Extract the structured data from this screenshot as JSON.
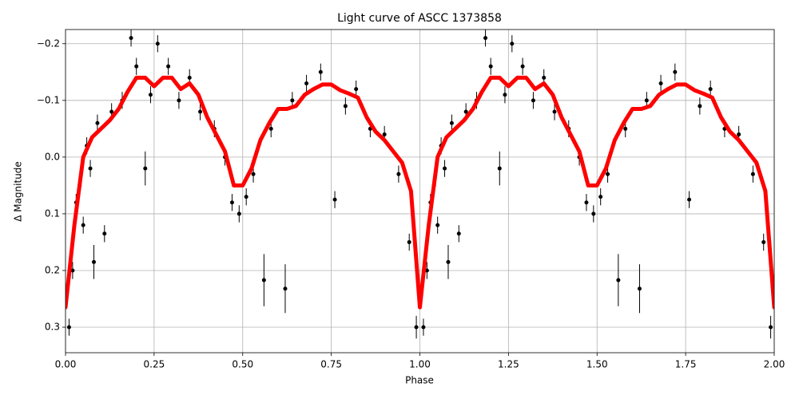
{
  "chart_data": {
    "type": "scatter",
    "title": "Light curve of ASCC 1373858",
    "x_label": "Phase",
    "y_label": "Δ Magnitude",
    "xlim": [
      0,
      2
    ],
    "ylim": [
      -0.225,
      0.345
    ],
    "y_inverted": true,
    "grid": true,
    "xticks": [
      {
        "value": 0,
        "label": "0.00"
      },
      {
        "value": 0.25,
        "label": "0.25"
      },
      {
        "value": 0.5,
        "label": "0.50"
      },
      {
        "value": 0.75,
        "label": "0.75"
      },
      {
        "value": 1,
        "label": "1.00"
      },
      {
        "value": 1.25,
        "label": "1.25"
      },
      {
        "value": 1.5,
        "label": "1.50"
      },
      {
        "value": 1.75,
        "label": "1.75"
      },
      {
        "value": 2,
        "label": "2.00"
      }
    ],
    "yticks": [
      {
        "value": -0.2,
        "label": "−0.2"
      },
      {
        "value": -0.1,
        "label": "−0.1"
      },
      {
        "value": 0,
        "label": "0.0"
      },
      0.1,
      0.2,
      0.3
    ],
    "points": {
      "color": "#000000",
      "x": [
        0.01,
        0.02,
        0.03,
        0.04,
        0.05,
        0.06,
        0.07,
        0.08,
        0.09,
        0.11,
        0.13,
        0.16,
        0.185,
        0.2,
        0.225,
        0.24,
        0.26,
        0.29,
        0.32,
        0.35,
        0.38,
        0.42,
        0.45,
        0.47,
        0.49,
        0.51,
        0.53,
        0.56,
        0.58,
        0.62,
        0.64,
        0.68,
        0.72,
        0.76,
        0.79,
        0.82,
        0.86,
        0.9,
        0.94,
        0.97,
        0.99,
        1.01,
        1.02,
        1.03,
        1.04,
        1.05,
        1.06,
        1.07,
        1.08,
        1.09,
        1.11,
        1.13,
        1.16,
        1.185,
        1.2,
        1.225,
        1.24,
        1.26,
        1.29,
        1.32,
        1.35,
        1.38,
        1.42,
        1.45,
        1.47,
        1.49,
        1.51,
        1.53,
        1.56,
        1.58,
        1.62,
        1.64,
        1.68,
        1.72,
        1.76,
        1.79,
        1.82,
        1.86,
        1.9,
        1.94,
        1.97,
        1.99
      ],
      "values": [
        0.3,
        0.2,
        0.08,
        0.05,
        0.12,
        -0.02,
        0.02,
        0.185,
        -0.06,
        0.135,
        -0.08,
        -0.1,
        -0.21,
        -0.16,
        0.02,
        -0.11,
        -0.2,
        -0.16,
        -0.1,
        -0.14,
        -0.08,
        -0.05,
        0.0,
        0.08,
        0.1,
        0.07,
        0.03,
        0.217,
        -0.05,
        0.232,
        -0.1,
        -0.13,
        -0.15,
        0.075,
        -0.09,
        -0.12,
        -0.05,
        -0.04,
        0.03,
        0.15,
        0.3,
        0.3,
        0.2,
        0.08,
        0.05,
        0.12,
        -0.02,
        0.02,
        0.185,
        -0.06,
        0.135,
        -0.08,
        -0.1,
        -0.21,
        -0.16,
        0.02,
        -0.11,
        -0.2,
        -0.16,
        -0.1,
        -0.14,
        -0.08,
        -0.05,
        0.0,
        0.08,
        0.1,
        0.07,
        0.03,
        0.217,
        -0.05,
        0.232,
        -0.1,
        -0.13,
        -0.15,
        0.075,
        -0.09,
        -0.12,
        -0.05,
        -0.04,
        0.03,
        0.15,
        0.3
      ],
      "errors": [
        0.015,
        0.015,
        0.015,
        0.015,
        0.015,
        0.015,
        0.015,
        0.03,
        0.015,
        0.015,
        0.015,
        0.015,
        0.015,
        0.015,
        0.03,
        0.015,
        0.015,
        0.015,
        0.015,
        0.015,
        0.015,
        0.015,
        0.015,
        0.015,
        0.015,
        0.015,
        0.015,
        0.046,
        0.015,
        0.043,
        0.015,
        0.015,
        0.015,
        0.015,
        0.015,
        0.015,
        0.015,
        0.015,
        0.015,
        0.015,
        0.02,
        0.015,
        0.015,
        0.015,
        0.015,
        0.015,
        0.015,
        0.015,
        0.03,
        0.015,
        0.015,
        0.015,
        0.015,
        0.015,
        0.015,
        0.03,
        0.015,
        0.015,
        0.015,
        0.015,
        0.015,
        0.015,
        0.015,
        0.015,
        0.015,
        0.015,
        0.015,
        0.015,
        0.046,
        0.015,
        0.043,
        0.015,
        0.015,
        0.015,
        0.015,
        0.015,
        0.015,
        0.015,
        0.015,
        0.015,
        0.015,
        0.02
      ]
    },
    "model": {
      "color": "#ff0000",
      "x": [
        0,
        0.025,
        0.05,
        0.075,
        0.1,
        0.125,
        0.15,
        0.175,
        0.2,
        0.225,
        0.25,
        0.275,
        0.3,
        0.325,
        0.35,
        0.375,
        0.4,
        0.425,
        0.45,
        0.475,
        0.5,
        0.525,
        0.55,
        0.575,
        0.6,
        0.625,
        0.65,
        0.675,
        0.7,
        0.725,
        0.75,
        0.775,
        0.8,
        0.825,
        0.85,
        0.875,
        0.9,
        0.925,
        0.95,
        0.975,
        1,
        1.025,
        1.05,
        1.075,
        1.1,
        1.125,
        1.15,
        1.175,
        1.2,
        1.225,
        1.25,
        1.275,
        1.3,
        1.325,
        1.35,
        1.375,
        1.4,
        1.425,
        1.45,
        1.475,
        1.5,
        1.525,
        1.55,
        1.575,
        1.6,
        1.625,
        1.65,
        1.675,
        1.7,
        1.725,
        1.75,
        1.775,
        1.8,
        1.825,
        1.85,
        1.875,
        1.9,
        1.925,
        1.95,
        1.975,
        2
      ],
      "values": [
        0.265,
        0.12,
        0.0,
        -0.035,
        -0.05,
        -0.065,
        -0.085,
        -0.115,
        -0.14,
        -0.14,
        -0.125,
        -0.14,
        -0.14,
        -0.12,
        -0.13,
        -0.11,
        -0.07,
        -0.04,
        -0.01,
        0.05,
        0.05,
        0.02,
        -0.03,
        -0.06,
        -0.085,
        -0.085,
        -0.09,
        -0.11,
        -0.12,
        -0.128,
        -0.128,
        -0.118,
        -0.112,
        -0.105,
        -0.07,
        -0.045,
        -0.03,
        -0.01,
        0.01,
        0.06,
        0.265,
        0.12,
        0.0,
        -0.035,
        -0.05,
        -0.065,
        -0.085,
        -0.115,
        -0.14,
        -0.14,
        -0.125,
        -0.14,
        -0.14,
        -0.12,
        -0.13,
        -0.11,
        -0.07,
        -0.04,
        -0.01,
        0.05,
        0.05,
        0.02,
        -0.03,
        -0.06,
        -0.085,
        -0.085,
        -0.09,
        -0.11,
        -0.12,
        -0.128,
        -0.128,
        -0.118,
        -0.112,
        -0.105,
        -0.07,
        -0.045,
        -0.03,
        -0.01,
        0.01,
        0.06,
        0.265
      ]
    }
  }
}
